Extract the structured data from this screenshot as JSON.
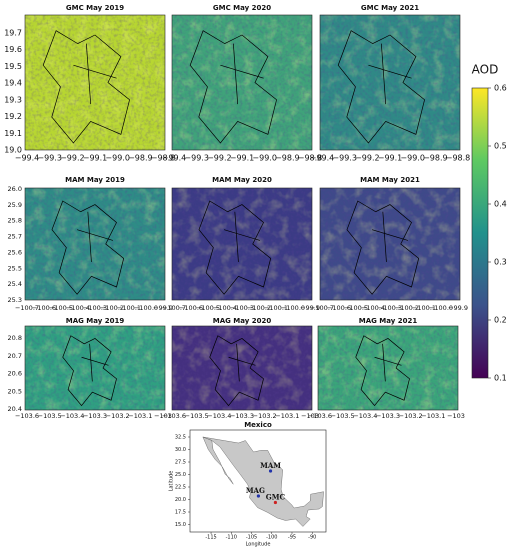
{
  "panels": [
    {
      "title": "GMC May 2019",
      "row": 0,
      "col": 0,
      "color": "#b7d631"
    },
    {
      "title": "GMC May 2020",
      "row": 0,
      "col": 1,
      "color": "#3fa37a"
    },
    {
      "title": "GMC May 2021",
      "row": 0,
      "col": 2,
      "color": "#2f8a86"
    },
    {
      "title": "MAM May 2019",
      "row": 1,
      "col": 0,
      "color": "#2e8c86"
    },
    {
      "title": "MAM May 2020",
      "row": 1,
      "col": 1,
      "color": "#3b3b85"
    },
    {
      "title": "MAM May 2021",
      "row": 1,
      "col": 2,
      "color": "#3e4a89"
    },
    {
      "title": "MAG May 2019",
      "row": 2,
      "col": 0,
      "color": "#2fa081"
    },
    {
      "title": "MAG May 2020",
      "row": 2,
      "col": 1,
      "color": "#44307f"
    },
    {
      "title": "MAG May 2021",
      "row": 2,
      "col": 2,
      "color": "#3aa57a"
    }
  ],
  "rows": [
    {
      "yticks": [
        "19.7",
        "19.6",
        "19.5",
        "19.4",
        "19.3",
        "19.2",
        "19.1",
        "19.0"
      ],
      "xticks": [
        "−99.4",
        "−99.3",
        "−99.2",
        "−99.1",
        "−99.0",
        "−98.9",
        "−98.8"
      ]
    },
    {
      "yticks": [
        "26.0",
        "25.9",
        "25.8",
        "25.7",
        "25.6",
        "25.5",
        "25.4",
        "25.3"
      ],
      "xticks": [
        "−100.7",
        "−100.6",
        "−100.5",
        "−100.4",
        "−100.3",
        "−100.2",
        "−100.1",
        "−100.0",
        "−99.9"
      ]
    },
    {
      "yticks": [
        "20.8",
        "20.7",
        "20.6",
        "20.5",
        "20.4"
      ],
      "xticks": [
        "−103.6",
        "−103.5",
        "−103.4",
        "−103.3",
        "−103.2",
        "−103.1",
        "−103"
      ]
    }
  ],
  "colorbar": {
    "label": "AOD",
    "lim": [
      0.1,
      0.6
    ],
    "ticks": [
      0.1,
      0.2,
      0.3,
      0.4,
      0.5,
      0.6
    ]
  },
  "map": {
    "title": "Mexico",
    "xlabel": "Longitude",
    "ylabel": "Latitude",
    "xlim": [
      -120.2,
      -86.6
    ],
    "ylim": [
      13.5,
      33.9
    ],
    "xticks": [
      -115,
      -110,
      -105,
      -100,
      -95,
      -90
    ],
    "yticks": [
      32.5,
      {
        "value": 30,
        "label": "30.0"
      },
      27.5,
      {
        "value": 25,
        "label": "25.0"
      },
      22.5,
      {
        "value": 20,
        "label": "20.0"
      },
      17.5,
      {
        "value": 15,
        "label": "15.0"
      }
    ],
    "cities": [
      {
        "name": "MAM",
        "lon": -100.3,
        "lat": 25.7,
        "color": "#2233aa"
      },
      {
        "name": "MAG",
        "lon": -103.3,
        "lat": 20.7,
        "color": "#2233aa"
      },
      {
        "name": "GMC",
        "lon": -99.1,
        "lat": 19.4,
        "color": "#cc2222"
      }
    ]
  }
}
